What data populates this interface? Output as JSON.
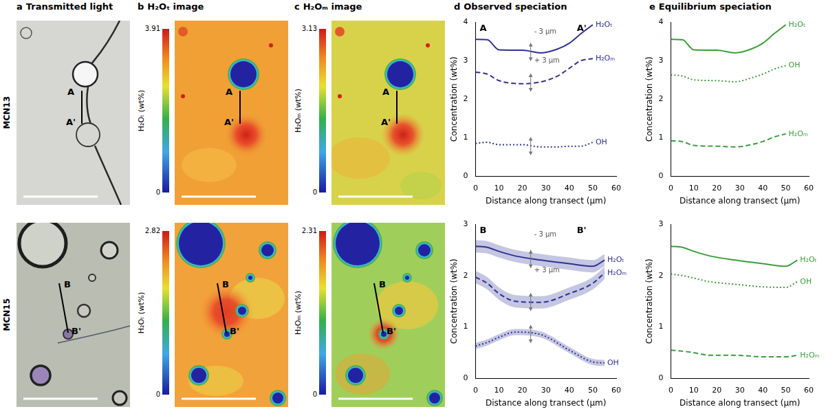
{
  "figure": {
    "columns": [
      {
        "letter": "a",
        "title": "Transmitted light"
      },
      {
        "letter": "b",
        "title": "H₂Oₜ image"
      },
      {
        "letter": "c",
        "title": "H₂Oₘ image"
      },
      {
        "letter": "d",
        "title": "Observed speciation"
      },
      {
        "letter": "e",
        "title": "Equilibrium speciation"
      }
    ],
    "rows": [
      {
        "sample": "MCN13",
        "transect": [
          "A",
          "A'"
        ],
        "colorbars": [
          {
            "label": "H₂Oₜ (wt%)",
            "range": [
              0,
              3.91
            ],
            "ticks": [
              0,
              3.91
            ]
          },
          {
            "label": "H₂Oₘ (wt%)",
            "range": [
              0,
              3.13
            ],
            "ticks": [
              0,
              3.13
            ]
          }
        ]
      },
      {
        "sample": "MCN15",
        "transect": [
          "B",
          "B'"
        ],
        "colorbars": [
          {
            "label": "H₂Oₜ (wt%)",
            "range": [
              0,
              2.82
            ],
            "ticks": [
              0,
              2.82
            ]
          },
          {
            "label": "H₂Oₘ (wt%)",
            "range": [
              0,
              2.31
            ],
            "ticks": [
              0,
              2.31
            ]
          }
        ]
      }
    ]
  },
  "chart_data": [
    {
      "type": "line",
      "x_label": "Distance along transect (µm)",
      "y_label": "Concentration (wt%)",
      "xlim": [
        0,
        60
      ],
      "xticks": [
        0,
        10,
        20,
        30,
        40,
        50,
        60
      ],
      "ylim": [
        0,
        4
      ],
      "yticks": [
        0,
        1,
        2,
        3,
        4
      ],
      "grid": false,
      "transect_labels": [
        "A",
        "A'"
      ],
      "annotations": [
        {
          "text": "- 3 µm",
          "x": 25,
          "y": 3.75
        },
        {
          "text": "+ 3 µm",
          "x": 25,
          "y": 3.0
        }
      ],
      "x": [
        0,
        5,
        10,
        20,
        28,
        35,
        40,
        45,
        50
      ],
      "series": [
        {
          "name": "H₂Oₜ",
          "color": "#2e3192",
          "line_style": "solid",
          "values": [
            3.55,
            3.54,
            3.28,
            3.27,
            3.2,
            3.3,
            3.45,
            3.7,
            3.93
          ]
        },
        {
          "name": "H₂Oₘ",
          "color": "#2e3192",
          "line_style": "dashed",
          "values": [
            2.7,
            2.65,
            2.48,
            2.4,
            2.45,
            2.6,
            2.8,
            3.0,
            3.05
          ]
        },
        {
          "name": "OH",
          "color": "#2e3192",
          "line_style": "dotted",
          "values": [
            0.85,
            0.88,
            0.82,
            0.82,
            0.76,
            0.76,
            0.78,
            0.78,
            0.88
          ]
        }
      ]
    },
    {
      "type": "line",
      "x_label": "Distance along transect (µm)",
      "y_label": "Concentration (wt%)",
      "xlim": [
        0,
        60
      ],
      "xticks": [
        0,
        10,
        20,
        30,
        40,
        50,
        60
      ],
      "ylim": [
        0,
        4
      ],
      "yticks": [
        0,
        1,
        2,
        3,
        4
      ],
      "grid": false,
      "x": [
        0,
        5,
        10,
        20,
        28,
        35,
        40,
        45,
        50
      ],
      "series": [
        {
          "name": "H₂Oₜ",
          "color": "#3a9d3a",
          "line_style": "solid",
          "values": [
            3.55,
            3.54,
            3.28,
            3.27,
            3.2,
            3.3,
            3.45,
            3.7,
            3.93
          ]
        },
        {
          "name": "OH",
          "color": "#3a9d3a",
          "line_style": "dotted",
          "values": [
            2.63,
            2.6,
            2.5,
            2.48,
            2.45,
            2.55,
            2.65,
            2.78,
            2.87
          ]
        },
        {
          "name": "H₂Oₘ",
          "color": "#3a9d3a",
          "line_style": "dashed",
          "values": [
            0.92,
            0.9,
            0.8,
            0.78,
            0.76,
            0.82,
            0.9,
            1.02,
            1.1
          ]
        }
      ]
    },
    {
      "type": "line",
      "x_label": "Distance along transect (µm)",
      "y_label": "Concentration (wt%)",
      "xlim": [
        0,
        60
      ],
      "xticks": [
        0,
        10,
        20,
        30,
        40,
        50,
        60
      ],
      "ylim": [
        0,
        3
      ],
      "yticks": [
        0,
        1,
        2,
        3
      ],
      "grid": false,
      "transect_labels": [
        "B",
        "B'"
      ],
      "annotations": [
        {
          "text": "- 3 µm",
          "x": 25,
          "y": 2.8
        },
        {
          "text": "+ 3 µm",
          "x": 25,
          "y": 2.1
        }
      ],
      "x": [
        0,
        5,
        10,
        17,
        28,
        40,
        50,
        55
      ],
      "series": [
        {
          "name": "H₂Oₜ",
          "color": "#2e3192",
          "line_style": "solid",
          "values": [
            2.57,
            2.55,
            2.47,
            2.38,
            2.3,
            2.23,
            2.18,
            2.3
          ],
          "errors": [
            0.12,
            0.12,
            0.12,
            0.12,
            0.12,
            0.12,
            0.12,
            0.12
          ]
        },
        {
          "name": "H₂Oₘ",
          "color": "#2e3192",
          "line_style": "dashed",
          "values": [
            1.97,
            1.85,
            1.65,
            1.5,
            1.48,
            1.65,
            1.85,
            2.05
          ],
          "errors": [
            0.12,
            0.12,
            0.12,
            0.12,
            0.12,
            0.12,
            0.12,
            0.12
          ]
        },
        {
          "name": "OH",
          "color": "#2e3192",
          "line_style": "dotted",
          "values": [
            0.63,
            0.7,
            0.8,
            0.9,
            0.85,
            0.55,
            0.32,
            0.3
          ],
          "errors": [
            0.06,
            0.06,
            0.06,
            0.06,
            0.06,
            0.06,
            0.06,
            0.06
          ]
        }
      ]
    },
    {
      "type": "line",
      "x_label": "Distance along transect (µm)",
      "y_label": "Concentration (wt%)",
      "xlim": [
        0,
        60
      ],
      "xticks": [
        0,
        10,
        20,
        30,
        40,
        50,
        60
      ],
      "ylim": [
        0,
        3
      ],
      "yticks": [
        0,
        1,
        2,
        3
      ],
      "grid": false,
      "x": [
        0,
        5,
        10,
        17,
        28,
        40,
        50,
        55
      ],
      "series": [
        {
          "name": "H₂Oₜ",
          "color": "#3a9d3a",
          "line_style": "solid",
          "values": [
            2.57,
            2.55,
            2.47,
            2.38,
            2.3,
            2.23,
            2.18,
            2.3
          ]
        },
        {
          "name": "OH",
          "color": "#3a9d3a",
          "line_style": "dotted",
          "values": [
            2.03,
            2.0,
            1.95,
            1.88,
            1.83,
            1.78,
            1.77,
            1.88
          ]
        },
        {
          "name": "H₂Oₘ",
          "color": "#3a9d3a",
          "line_style": "dashed",
          "values": [
            0.55,
            0.53,
            0.5,
            0.45,
            0.45,
            0.42,
            0.42,
            0.45
          ]
        }
      ]
    }
  ]
}
